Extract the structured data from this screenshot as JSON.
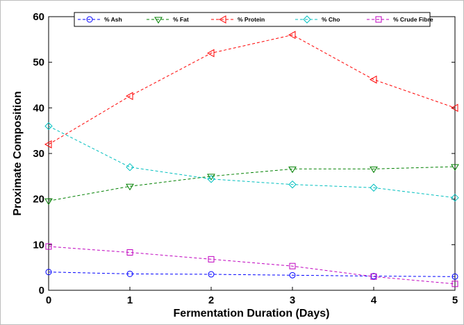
{
  "chart_data": {
    "type": "line",
    "title": "",
    "xlabel": "Fermentation Duration (Days)",
    "ylabel": "Proximate Composition",
    "x": [
      0,
      1,
      2,
      3,
      4,
      5
    ],
    "x_ticks": [
      "0",
      "1",
      "2",
      "3",
      "4",
      "5"
    ],
    "y_ticks": [
      "0",
      "10",
      "20",
      "30",
      "40",
      "50",
      "60"
    ],
    "xlim": [
      0,
      5
    ],
    "ylim": [
      0,
      60
    ],
    "grid": false,
    "legend_position": "top",
    "series": [
      {
        "name": "% Ash",
        "color": "#0000ff",
        "marker": "circle",
        "values": [
          4.0,
          3.6,
          3.5,
          3.3,
          3.1,
          3.0
        ]
      },
      {
        "name": "% Fat",
        "color": "#008000",
        "marker": "triangle-down",
        "values": [
          19.6,
          22.8,
          25.0,
          26.6,
          26.6,
          27.1
        ]
      },
      {
        "name": "% Protein",
        "color": "#ff0000",
        "marker": "triangle-left",
        "values": [
          32.0,
          42.6,
          52.0,
          56.0,
          46.2,
          40.0
        ]
      },
      {
        "name": "% Cho",
        "color": "#00bfbf",
        "marker": "diamond",
        "values": [
          36.0,
          27.0,
          24.4,
          23.2,
          22.5,
          20.3
        ]
      },
      {
        "name": "% Crude Fibre",
        "color": "#bf00bf",
        "marker": "square",
        "values": [
          9.6,
          8.3,
          6.8,
          5.3,
          3.0,
          1.4
        ]
      }
    ]
  }
}
